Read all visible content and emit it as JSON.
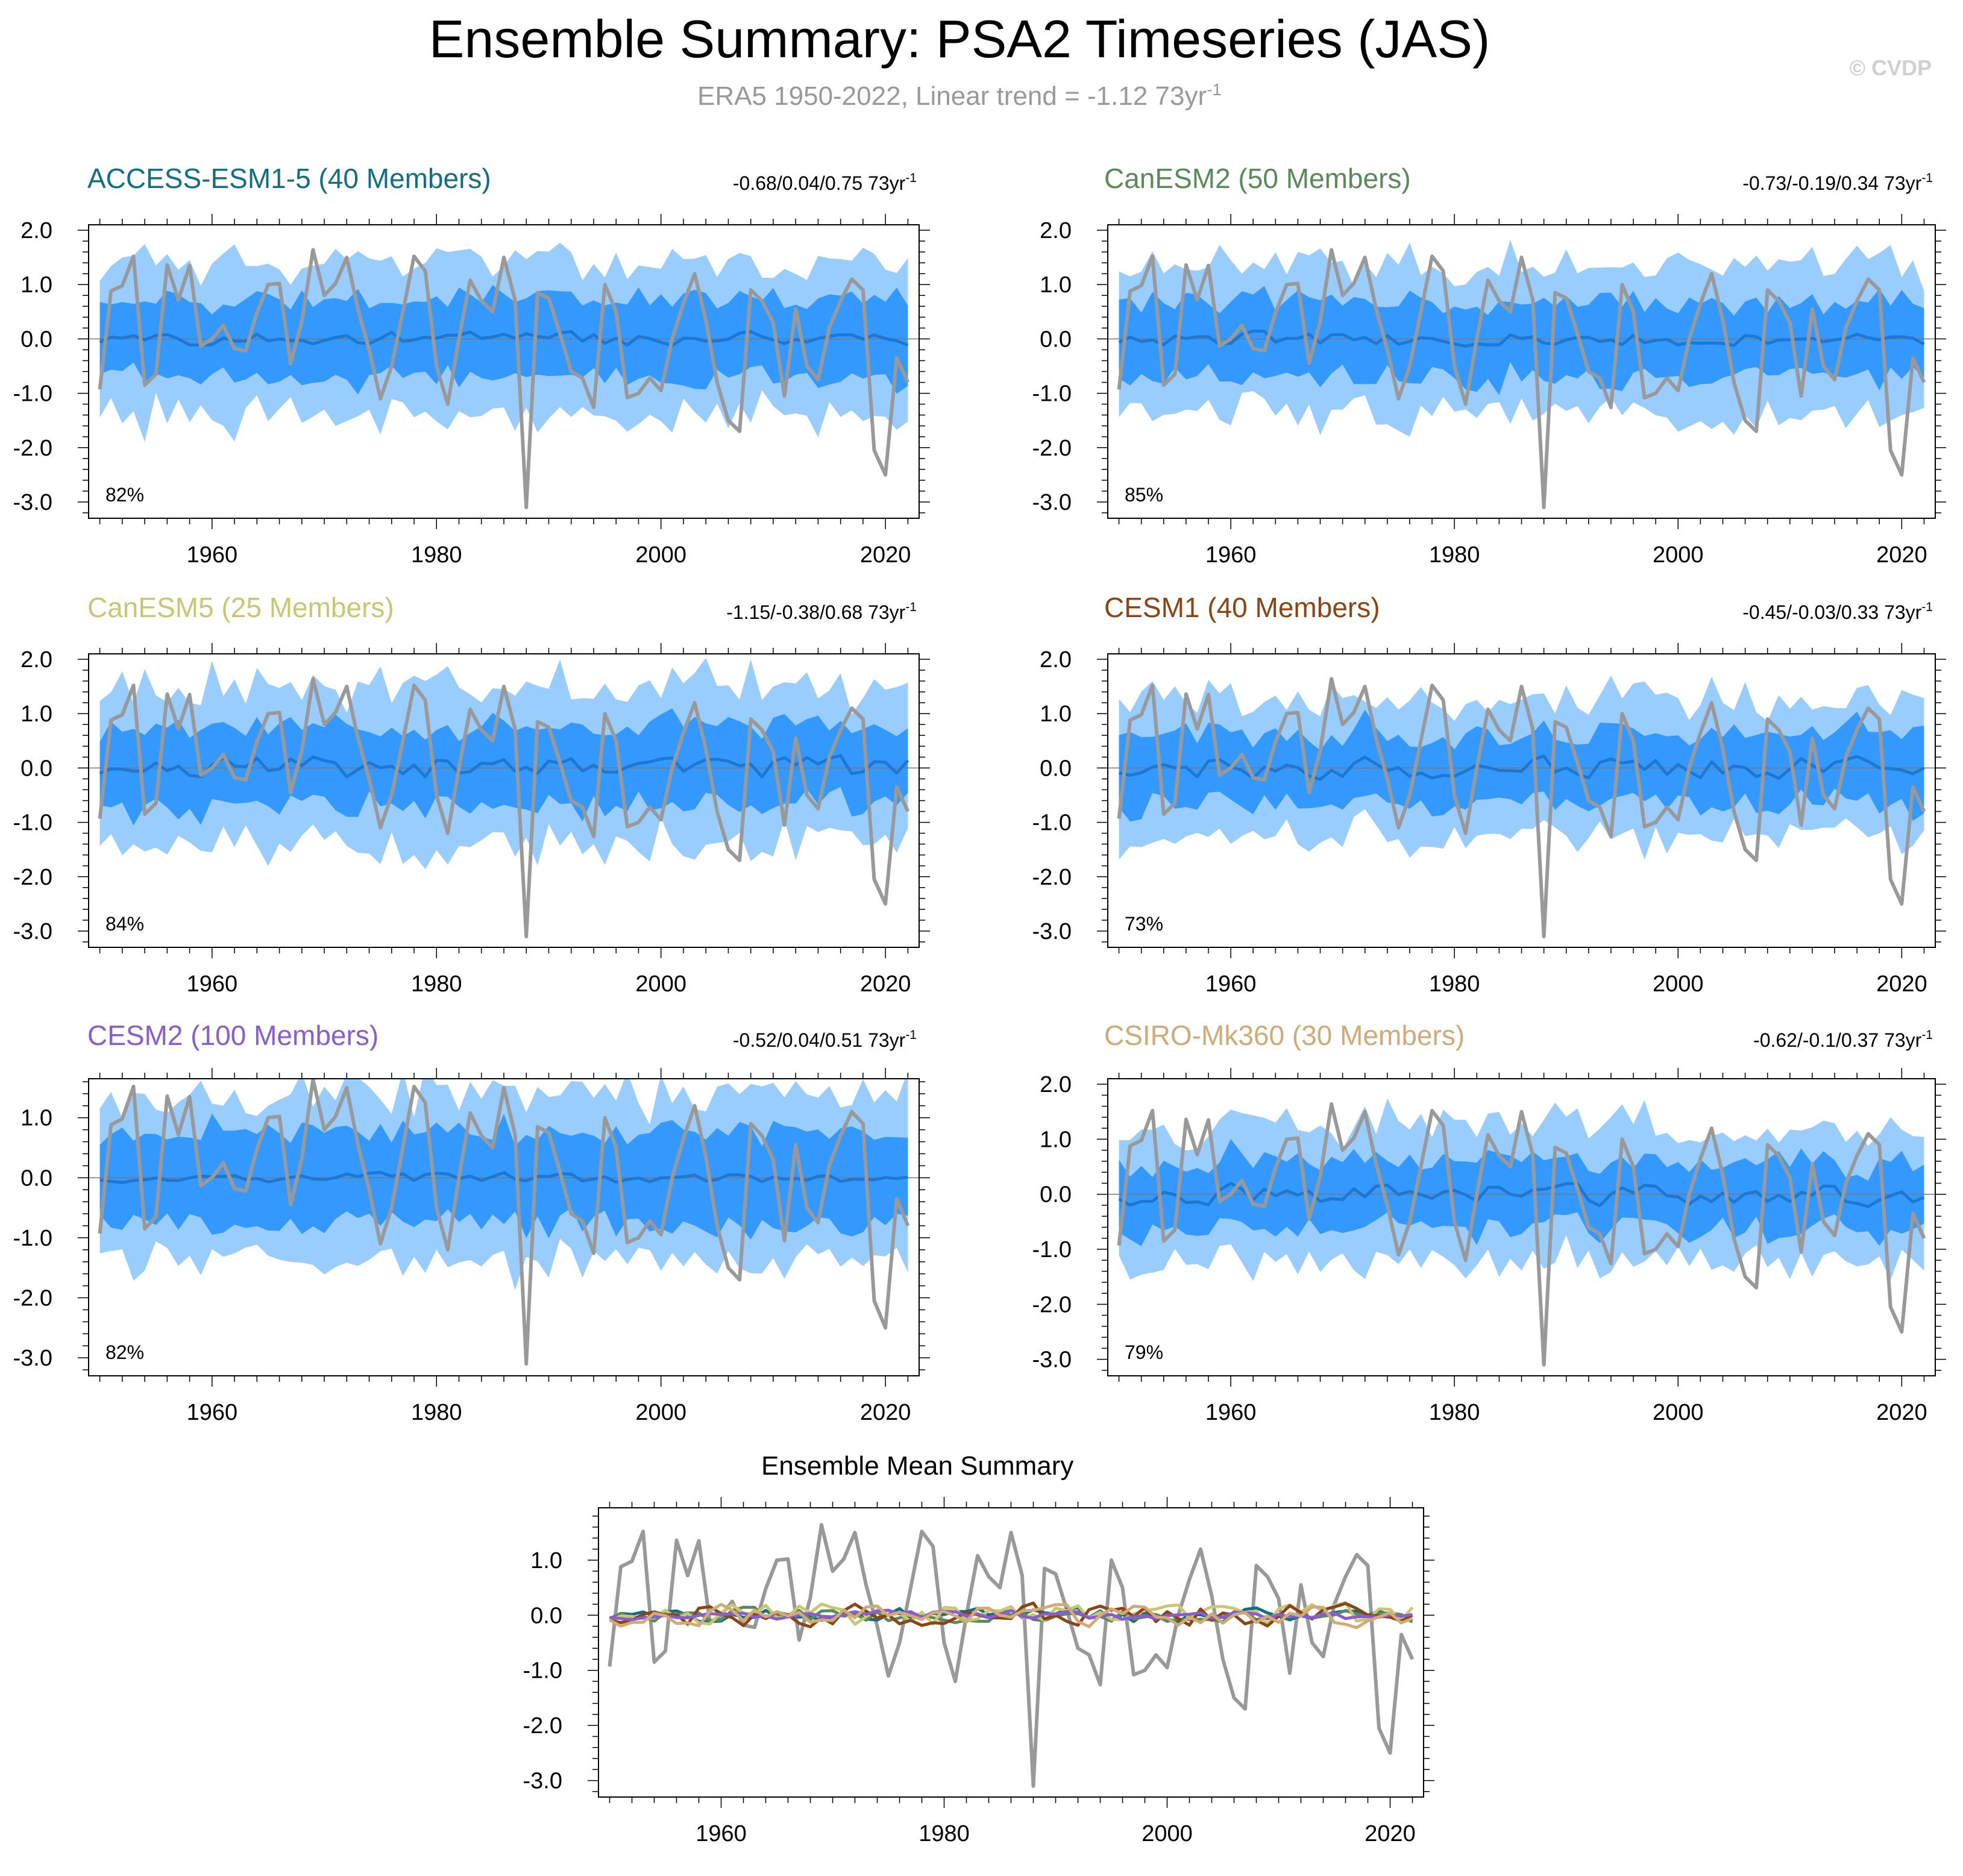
{
  "title": "Ensemble Summary: PSA2 Timeseries (JAS)",
  "subtitle_prefix": "ERA5 1950-2022, Linear trend = -1.12 73yr",
  "subtitle_sup": "-1",
  "watermark": "© CVDP",
  "colors": {
    "background": "#ffffff",
    "title": "#000000",
    "subtitle": "#999999",
    "watermark": "#d0d0d0",
    "observed": "#999999",
    "outer_spread": "#99ccff",
    "inner_spread": "#3399ff",
    "ensemble_mean": "#1e78d2",
    "zero_line": "#777777",
    "axes": "#000000"
  },
  "chart_data": [
    {
      "type": "area",
      "title": "ACCESS-ESM1-5 (40 Members)",
      "title_color": "#126e82",
      "trend_text": "-0.68/0.04/0.75 73yr",
      "trend_sup": "-1",
      "percent": "82%",
      "xlim": [
        1949,
        2023
      ],
      "ylim": [
        -3.3,
        2.1
      ],
      "xticks": [
        1960,
        1980,
        2000,
        2020
      ],
      "yticks": [
        2.0,
        1.0,
        0.0,
        -1.0,
        -2.0,
        -3.0
      ],
      "ytick_labels": [
        "2.0",
        "1.0",
        "0.0",
        "-1.0",
        "-2.0",
        "-3.0"
      ],
      "outer_half": 1.35,
      "inner_half": 0.7,
      "mean_amp": 0.12,
      "seed": 11
    },
    {
      "type": "area",
      "title": "CanESM2 (50 Members)",
      "title_color": "#5a8a5a",
      "trend_text": "-0.73/-0.19/0.34 73yr",
      "trend_sup": "-1",
      "percent": "85%",
      "xlim": [
        1949,
        2023
      ],
      "ylim": [
        -3.3,
        2.1
      ],
      "xticks": [
        1960,
        1980,
        2000,
        2020
      ],
      "yticks": [
        2.0,
        1.0,
        0.0,
        -1.0,
        -2.0,
        -3.0
      ],
      "ytick_labels": [
        "2.0",
        "1.0",
        "0.0",
        "-1.0",
        "-2.0",
        "-3.0"
      ],
      "outer_half": 1.3,
      "inner_half": 0.68,
      "mean_amp": 0.12,
      "seed": 23
    },
    {
      "type": "area",
      "title": "CanESM5 (25 Members)",
      "title_color": "#c8c870",
      "trend_text": "-1.15/-0.38/0.68 73yr",
      "trend_sup": "-1",
      "percent": "84%",
      "xlim": [
        1949,
        2023
      ],
      "ylim": [
        -3.3,
        2.1
      ],
      "xticks": [
        1960,
        1980,
        2000,
        2020
      ],
      "yticks": [
        2.0,
        1.0,
        0.0,
        -1.0,
        -2.0,
        -3.0
      ],
      "ytick_labels": [
        "2.0",
        "1.0",
        "0.0",
        "-1.0",
        "-2.0",
        "-3.0"
      ],
      "outer_half": 1.4,
      "inner_half": 0.72,
      "mean_amp": 0.2,
      "seed": 37
    },
    {
      "type": "area",
      "title": "CESM1 (40 Members)",
      "title_color": "#8b4513",
      "trend_text": "-0.45/-0.03/0.33 73yr",
      "trend_sup": "-1",
      "percent": "73%",
      "xlim": [
        1949,
        2023
      ],
      "ylim": [
        -3.3,
        2.1
      ],
      "xticks": [
        1960,
        1980,
        2000,
        2020
      ],
      "yticks": [
        2.0,
        1.0,
        0.0,
        -1.0,
        -2.0,
        -3.0
      ],
      "ytick_labels": [
        "2.0",
        "1.0",
        "0.0",
        "-1.0",
        "-2.0",
        "-3.0"
      ],
      "outer_half": 1.2,
      "inner_half": 0.62,
      "mean_amp": 0.18,
      "seed": 41
    },
    {
      "type": "area",
      "title": "CESM2 (100 Members)",
      "title_color": "#8a5cd2",
      "trend_text": "-0.52/0.04/0.51 73yr",
      "trend_sup": "-1",
      "percent": "82%",
      "xlim": [
        1949,
        2023
      ],
      "ylim": [
        -3.3,
        1.65
      ],
      "xticks": [
        1960,
        1980,
        2000,
        2020
      ],
      "yticks": [
        1.0,
        0.0,
        -1.0,
        -2.0,
        -3.0
      ],
      "ytick_labels": [
        "1.0",
        "0.0",
        "-1.0",
        "-2.0",
        "-3.0"
      ],
      "outer_half": 1.3,
      "inner_half": 0.75,
      "mean_amp": 0.08,
      "seed": 53
    },
    {
      "type": "area",
      "title": "CSIRO-Mk360 (30 Members)",
      "title_color": "#d2aa78",
      "trend_text": "-0.62/-0.1/0.37 73yr",
      "trend_sup": "-1",
      "percent": "79%",
      "xlim": [
        1949,
        2023
      ],
      "ylim": [
        -3.3,
        2.1
      ],
      "xticks": [
        1960,
        1980,
        2000,
        2020
      ],
      "yticks": [
        2.0,
        1.0,
        0.0,
        -1.0,
        -2.0,
        -3.0
      ],
      "ytick_labels": [
        "2.0",
        "1.0",
        "0.0",
        "-1.0",
        "-2.0",
        "-3.0"
      ],
      "outer_half": 1.2,
      "inner_half": 0.6,
      "mean_amp": 0.18,
      "seed": 67
    },
    {
      "type": "line",
      "title": "Ensemble Mean Summary",
      "xlim": [
        1949,
        2023
      ],
      "ylim": [
        -3.3,
        1.95
      ],
      "xticks": [
        1960,
        1980,
        2000,
        2020
      ],
      "yticks": [
        1.0,
        0.0,
        -1.0,
        -2.0,
        -3.0
      ],
      "ytick_labels": [
        "1.0",
        "0.0",
        "-1.0",
        "-2.0",
        "-3.0"
      ],
      "series_colors": [
        "#126e82",
        "#5a8a5a",
        "#c8c870",
        "#8b4513",
        "#8a5cd2",
        "#d2aa78"
      ]
    }
  ],
  "observed": {
    "name": "ERA5",
    "years": [
      1950,
      1951,
      1952,
      1953,
      1954,
      1955,
      1956,
      1957,
      1958,
      1959,
      1960,
      1961,
      1962,
      1963,
      1964,
      1965,
      1966,
      1967,
      1968,
      1969,
      1970,
      1971,
      1972,
      1973,
      1974,
      1975,
      1976,
      1977,
      1978,
      1979,
      1980,
      1981,
      1982,
      1983,
      1984,
      1985,
      1986,
      1987,
      1988,
      1989,
      1990,
      1991,
      1992,
      1993,
      1994,
      1995,
      1996,
      1997,
      1998,
      1999,
      2000,
      2001,
      2002,
      2003,
      2004,
      2005,
      2006,
      2007,
      2008,
      2009,
      2010,
      2011,
      2012,
      2013,
      2014,
      2015,
      2016,
      2017,
      2018,
      2019,
      2020,
      2021,
      2022
    ],
    "values": [
      -0.93,
      0.88,
      0.98,
      1.52,
      -0.85,
      -0.65,
      1.36,
      0.72,
      1.35,
      -0.13,
      0.0,
      0.25,
      -0.18,
      -0.22,
      0.48,
      1.0,
      1.02,
      -0.45,
      0.32,
      1.64,
      0.8,
      1.02,
      1.5,
      0.55,
      -0.2,
      -1.1,
      -0.5,
      0.5,
      1.52,
      1.25,
      -0.5,
      -1.2,
      0.0,
      1.08,
      0.7,
      0.5,
      1.5,
      0.72,
      -3.1,
      0.85,
      0.75,
      0.1,
      -0.6,
      -0.72,
      -1.26,
      1.0,
      0.5,
      -1.08,
      -1.0,
      -0.72,
      -0.95,
      0.0,
      0.65,
      1.2,
      0.35,
      -0.8,
      -1.5,
      -1.7,
      0.9,
      0.7,
      0.3,
      -1.05,
      0.55,
      -0.5,
      -0.75,
      0.2,
      0.7,
      1.1,
      0.9,
      -2.05,
      -2.5,
      -0.35,
      -0.8
    ]
  }
}
